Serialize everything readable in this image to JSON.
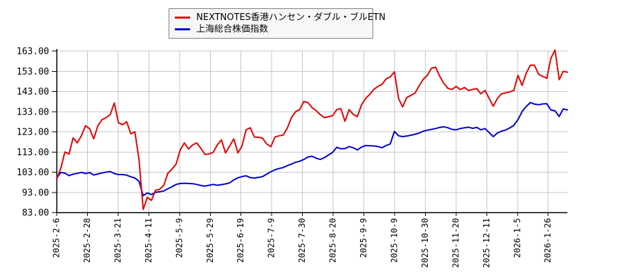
{
  "colors": {
    "background": "#ffffff",
    "grid": "#c6c6c6",
    "axis": "#000000",
    "legend_bg": "#f7f7f7",
    "legend_border": "#808080",
    "series_red": "#e60000",
    "series_blue": "#0000cc"
  },
  "chart_data": {
    "type": "line",
    "title": "",
    "xlabel": "",
    "ylabel": "",
    "ylim": [
      83,
      163
    ],
    "grid": true,
    "legend_position": "top-center",
    "y_ticks": [
      {
        "label": "163.00",
        "value": 163
      },
      {
        "label": "153.00",
        "value": 153
      },
      {
        "label": "143.00",
        "value": 143
      },
      {
        "label": "133.00",
        "value": 133
      },
      {
        "label": "123.00",
        "value": 123
      },
      {
        "label": "113.00",
        "value": 113
      },
      {
        "label": "103.00",
        "value": 103
      },
      {
        "label": "93.00",
        "value": 93
      },
      {
        "label": "83.00",
        "value": 83
      }
    ],
    "x_tick_labels": [
      "2025-2-6",
      "2025-2-28",
      "2025-3-21",
      "2025-4-11",
      "2025-5-9",
      "2025-5-29",
      "2025-6-19",
      "2025-7-9",
      "2025-7-30",
      "2025-8-20",
      "2025-9-9",
      "2025-10-9",
      "2025-10-30",
      "2025-11-20",
      "2025-12-11",
      "2026-1-5",
      "2026-1-26"
    ],
    "x_note": "values sampled approximately every 2 trading days from 2025-2-6 to 2026-2 month-start; ticks every 15 sessions",
    "series": [
      {
        "name": "NEXTNOTES香港ハンセン・ダブル・ブルETN",
        "color": "#e60000",
        "values": [
          99.5,
          105,
          113,
          112,
          120,
          117.5,
          121,
          126,
          124.5,
          119.5,
          126,
          129,
          130,
          131.5,
          137.3,
          127.5,
          126.5,
          128,
          122,
          123,
          109,
          84.5,
          90.5,
          89,
          94,
          94.5,
          96.5,
          102.5,
          104.5,
          107,
          114,
          117.5,
          114.5,
          116.5,
          117.5,
          114.8,
          111.8,
          112,
          112.8,
          116.5,
          119,
          112.5,
          116,
          119.5,
          112.5,
          116,
          124,
          125,
          120.4,
          120.3,
          119.8,
          117,
          115.6,
          120.4,
          121,
          121.4,
          124.8,
          130,
          133,
          134,
          138,
          137.5,
          135,
          133.5,
          131.5,
          130,
          130.5,
          131,
          134,
          134.5,
          128.2,
          134,
          131.6,
          130.5,
          136.3,
          139.5,
          141.5,
          144,
          145.5,
          146.5,
          149.3,
          150.2,
          152.7,
          139.5,
          135.3,
          140,
          141,
          142.2,
          145.8,
          149,
          151,
          154.5,
          155,
          150.5,
          147,
          144.5,
          144,
          145.5,
          143.9,
          145,
          143.5,
          144,
          144.4,
          141.8,
          143.5,
          139.5,
          135.7,
          139.5,
          141.8,
          142.3,
          142.8,
          143.5,
          151,
          146,
          152,
          156,
          156,
          151.5,
          150.5,
          149.5,
          159.5,
          163.5,
          148.8,
          153,
          152.5
        ]
      },
      {
        "name": "上海総合株価指数",
        "color": "#0000cc",
        "values": [
          100,
          102.9,
          102.5,
          101.3,
          102,
          102.4,
          102.9,
          102.3,
          102.8,
          101.6,
          102.1,
          102.6,
          103,
          103.3,
          102.3,
          101.8,
          101.8,
          101.5,
          100.7,
          100.1,
          98.5,
          91.3,
          92.7,
          91.9,
          93,
          93.3,
          93.7,
          94.8,
          95.8,
          96.9,
          97.4,
          97.5,
          97.4,
          97.3,
          96.9,
          96.4,
          96.1,
          96.5,
          96.9,
          96.5,
          96.8,
          97.2,
          97.7,
          99.2,
          100.2,
          100.8,
          101.2,
          100.3,
          100.1,
          100.4,
          100.8,
          102,
          103.2,
          104.2,
          104.8,
          105.3,
          106.2,
          107,
          107.9,
          108.4,
          109.3,
          110.5,
          110.9,
          109.9,
          109.3,
          110.2,
          111.5,
          112.8,
          115.3,
          114.6,
          114.7,
          115.7,
          115.1,
          114,
          115.4,
          116.2,
          116.1,
          116,
          115.7,
          115.1,
          116.2,
          117,
          123.2,
          121,
          120.6,
          120.9,
          121.3,
          121.8,
          122.4,
          123.3,
          123.8,
          124.2,
          124.6,
          125.2,
          125.5,
          125,
          124.2,
          124,
          124.6,
          125,
          125.3,
          124.7,
          125.2,
          124,
          124.6,
          122.6,
          120.6,
          122.4,
          123.3,
          123.9,
          124.9,
          126.2,
          129,
          133,
          135.5,
          137.5,
          136.7,
          136.4,
          136.8,
          136.9,
          133.8,
          133.4,
          130.6,
          134.4,
          133.8
        ]
      }
    ]
  }
}
